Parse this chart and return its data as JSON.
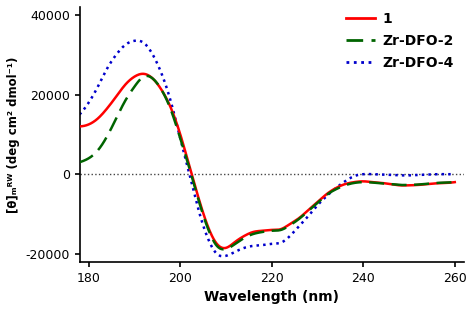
{
  "xlabel": "Wavelength (nm)",
  "ylabel": "[θ]ₘᴿᵂ (deg cm² dmol⁻¹)",
  "xlim": [
    178,
    262
  ],
  "ylim": [
    -22000,
    42000
  ],
  "xticks": [
    180,
    200,
    220,
    240,
    260
  ],
  "yticks": [
    -20000,
    0,
    20000,
    40000
  ],
  "legend": [
    "1",
    "Zr-DFO-2",
    "Zr-DFO-4"
  ],
  "line_colors": [
    "#ff0000",
    "#006400",
    "#0000cc"
  ],
  "zero_line_color": "#444444",
  "background_color": "#ffffff",
  "curve1": {
    "x": [
      178,
      180,
      182,
      184,
      186,
      188,
      190,
      192,
      194,
      196,
      198,
      200,
      202,
      204,
      206,
      208,
      210,
      212,
      214,
      216,
      218,
      220,
      222,
      224,
      226,
      228,
      230,
      232,
      234,
      236,
      238,
      240,
      242,
      244,
      246,
      248,
      250,
      252,
      254,
      256,
      258,
      260
    ],
    "y": [
      12000,
      12500,
      14000,
      16500,
      19500,
      22500,
      24500,
      25200,
      24000,
      21000,
      16500,
      10000,
      2000,
      -6000,
      -13000,
      -17500,
      -18500,
      -17000,
      -15500,
      -14500,
      -14200,
      -14000,
      -13800,
      -12500,
      -11000,
      -9000,
      -7000,
      -5000,
      -3500,
      -2500,
      -2000,
      -1800,
      -2000,
      -2200,
      -2500,
      -2800,
      -2800,
      -2700,
      -2500,
      -2300,
      -2200,
      -2000
    ]
  },
  "curve2": {
    "x": [
      178,
      180,
      182,
      184,
      186,
      188,
      190,
      192,
      194,
      196,
      198,
      200,
      202,
      204,
      206,
      208,
      210,
      212,
      214,
      216,
      218,
      220,
      222,
      224,
      226,
      228,
      230,
      232,
      234,
      236,
      238,
      240,
      242,
      244,
      246,
      248,
      250,
      252,
      254,
      256,
      258,
      260
    ],
    "y": [
      3000,
      4000,
      6000,
      9500,
      14000,
      18500,
      22000,
      24500,
      24000,
      21000,
      16000,
      9000,
      1500,
      -6500,
      -13500,
      -18000,
      -18800,
      -17500,
      -16000,
      -15000,
      -14500,
      -14200,
      -14000,
      -12800,
      -11200,
      -9200,
      -7200,
      -5200,
      -3800,
      -2800,
      -2200,
      -2000,
      -2100,
      -2300,
      -2500,
      -2700,
      -2700,
      -2600,
      -2400,
      -2200,
      -2100,
      -2000
    ]
  },
  "curve4": {
    "x": [
      178,
      180,
      182,
      184,
      186,
      188,
      190,
      192,
      194,
      196,
      198,
      200,
      202,
      204,
      206,
      208,
      210,
      212,
      214,
      216,
      218,
      220,
      222,
      224,
      226,
      228,
      230,
      232,
      234,
      236,
      238,
      240,
      242,
      244,
      246,
      248,
      250,
      252,
      254,
      256,
      258,
      260
    ],
    "y": [
      15000,
      18000,
      22000,
      26500,
      30000,
      32500,
      33500,
      33000,
      30000,
      25000,
      18000,
      9000,
      0,
      -9000,
      -16000,
      -20000,
      -20500,
      -19500,
      -18500,
      -18000,
      -17800,
      -17500,
      -17200,
      -15500,
      -13000,
      -10500,
      -7800,
      -5500,
      -3500,
      -1800,
      -500,
      0,
      0,
      -100,
      -200,
      -300,
      -300,
      -200,
      -100,
      0,
      0,
      0
    ]
  }
}
